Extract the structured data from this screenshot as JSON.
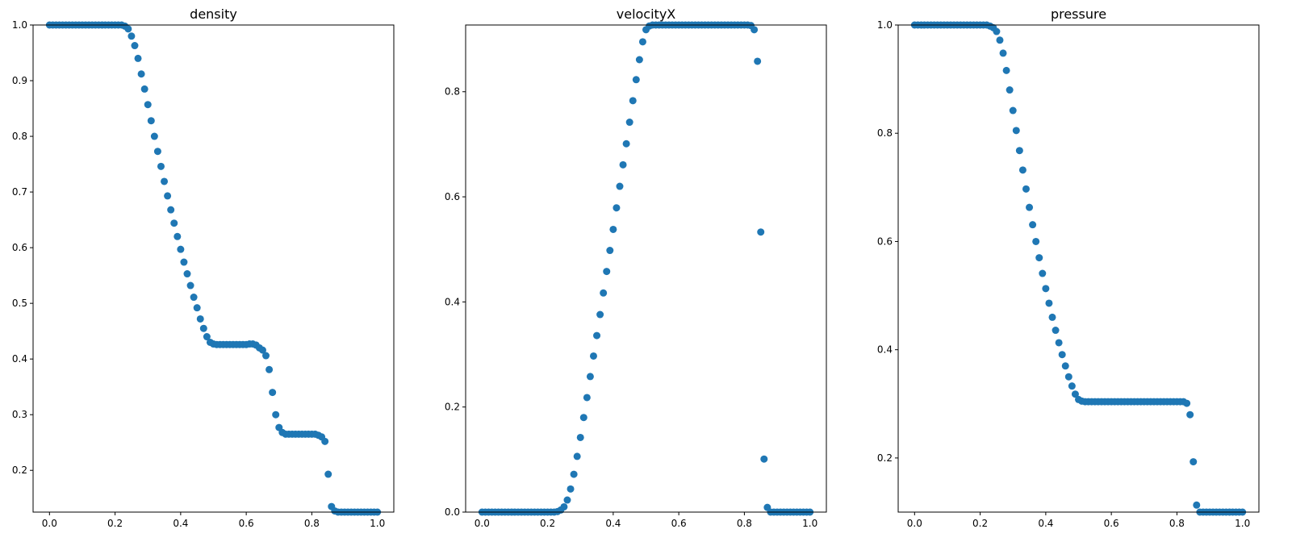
{
  "chart_data": [
    {
      "type": "scatter",
      "title": "density",
      "color": "#1f77b4",
      "x": [
        0,
        0.01,
        0.02,
        0.03,
        0.04,
        0.05,
        0.06,
        0.07,
        0.08,
        0.09,
        0.1,
        0.11,
        0.12,
        0.13,
        0.14,
        0.15,
        0.16,
        0.17,
        0.18,
        0.19,
        0.2,
        0.21,
        0.22,
        0.23,
        0.24,
        0.25,
        0.26,
        0.27,
        0.28,
        0.29,
        0.3,
        0.31,
        0.32,
        0.33,
        0.34,
        0.35,
        0.36,
        0.37,
        0.38,
        0.39,
        0.4,
        0.41,
        0.42,
        0.43,
        0.44,
        0.45,
        0.46,
        0.47,
        0.48,
        0.49,
        0.5,
        0.51,
        0.52,
        0.53,
        0.54,
        0.55,
        0.56,
        0.57,
        0.58,
        0.59,
        0.6,
        0.61,
        0.62,
        0.63,
        0.64,
        0.65,
        0.66,
        0.67,
        0.68,
        0.69,
        0.7,
        0.71,
        0.72,
        0.73,
        0.74,
        0.75,
        0.76,
        0.77,
        0.78,
        0.79,
        0.8,
        0.81,
        0.82,
        0.83,
        0.84,
        0.85,
        0.86,
        0.87,
        0.88,
        0.89,
        0.9,
        0.91,
        0.92,
        0.93,
        0.94,
        0.95,
        0.96,
        0.97,
        0.98,
        0.99,
        1
      ],
      "values": [
        1,
        1,
        1,
        1,
        1,
        1,
        1,
        1,
        1,
        1,
        1,
        1,
        1,
        1,
        1,
        1,
        1,
        1,
        1,
        1,
        1,
        1,
        1,
        0.998,
        0.993,
        0.98,
        0.963,
        0.94,
        0.912,
        0.885,
        0.857,
        0.828,
        0.8,
        0.773,
        0.746,
        0.719,
        0.693,
        0.668,
        0.644,
        0.62,
        0.597,
        0.574,
        0.553,
        0.532,
        0.511,
        0.492,
        0.472,
        0.455,
        0.44,
        0.43,
        0.427,
        0.426,
        0.426,
        0.426,
        0.426,
        0.426,
        0.426,
        0.426,
        0.426,
        0.426,
        0.426,
        0.427,
        0.427,
        0.425,
        0.42,
        0.416,
        0.406,
        0.381,
        0.34,
        0.3,
        0.277,
        0.268,
        0.265,
        0.265,
        0.265,
        0.265,
        0.265,
        0.265,
        0.265,
        0.265,
        0.265,
        0.265,
        0.263,
        0.26,
        0.252,
        0.193,
        0.135,
        0.127,
        0.125,
        0.125,
        0.125,
        0.125,
        0.125,
        0.125,
        0.125,
        0.125,
        0.125,
        0.125,
        0.125,
        0.125,
        0.125
      ],
      "xlim": [
        -0.05,
        1.05
      ],
      "xticks": [
        {
          "value": 0,
          "label": "0.0"
        },
        0.2,
        0.4,
        0.6,
        0.8,
        {
          "value": 1,
          "label": "1.0"
        }
      ],
      "ylim": [
        0.125,
        1
      ],
      "yticks": [
        0.2,
        0.3,
        0.4,
        0.5,
        0.6,
        0.7,
        0.8,
        0.9,
        {
          "value": 1,
          "label": "1.0"
        }
      ],
      "grid": false
    },
    {
      "type": "scatter",
      "title": "velocityX",
      "color": "#1f77b4",
      "x": [
        0,
        0.01,
        0.02,
        0.03,
        0.04,
        0.05,
        0.06,
        0.07,
        0.08,
        0.09,
        0.1,
        0.11,
        0.12,
        0.13,
        0.14,
        0.15,
        0.16,
        0.17,
        0.18,
        0.19,
        0.2,
        0.21,
        0.22,
        0.23,
        0.24,
        0.25,
        0.26,
        0.27,
        0.28,
        0.29,
        0.3,
        0.31,
        0.32,
        0.33,
        0.34,
        0.35,
        0.36,
        0.37,
        0.38,
        0.39,
        0.4,
        0.41,
        0.42,
        0.43,
        0.44,
        0.45,
        0.46,
        0.47,
        0.48,
        0.49,
        0.5,
        0.51,
        0.52,
        0.53,
        0.54,
        0.55,
        0.56,
        0.57,
        0.58,
        0.59,
        0.6,
        0.61,
        0.62,
        0.63,
        0.64,
        0.65,
        0.66,
        0.67,
        0.68,
        0.69,
        0.7,
        0.71,
        0.72,
        0.73,
        0.74,
        0.75,
        0.76,
        0.77,
        0.78,
        0.79,
        0.8,
        0.81,
        0.82,
        0.83,
        0.84,
        0.85,
        0.86,
        0.87,
        0.88,
        0.89,
        0.9,
        0.91,
        0.92,
        0.93,
        0.94,
        0.95,
        0.96,
        0.97,
        0.98,
        0.99,
        1
      ],
      "values": [
        0,
        0,
        0,
        0,
        0,
        0,
        0,
        0,
        0,
        0,
        0,
        0,
        0,
        0,
        0,
        0,
        0,
        0,
        0,
        0,
        0,
        0,
        0,
        0.001,
        0.004,
        0.01,
        0.023,
        0.044,
        0.072,
        0.106,
        0.142,
        0.18,
        0.218,
        0.258,
        0.297,
        0.336,
        0.376,
        0.417,
        0.458,
        0.498,
        0.538,
        0.579,
        0.62,
        0.661,
        0.701,
        0.742,
        0.783,
        0.823,
        0.861,
        0.895,
        0.918,
        0.925,
        0.927,
        0.927,
        0.927,
        0.927,
        0.927,
        0.927,
        0.927,
        0.927,
        0.927,
        0.927,
        0.927,
        0.927,
        0.927,
        0.927,
        0.927,
        0.927,
        0.927,
        0.927,
        0.927,
        0.927,
        0.927,
        0.927,
        0.927,
        0.927,
        0.927,
        0.927,
        0.927,
        0.927,
        0.927,
        0.927,
        0.926,
        0.918,
        0.858,
        0.533,
        0.101,
        0.009,
        0,
        0,
        0,
        0,
        0,
        0,
        0,
        0,
        0,
        0,
        0,
        0,
        0
      ],
      "xlim": [
        -0.05,
        1.05
      ],
      "xticks": [
        {
          "value": 0,
          "label": "0.0"
        },
        0.2,
        0.4,
        0.6,
        0.8,
        {
          "value": 1,
          "label": "1.0"
        }
      ],
      "ylim": [
        0,
        0.927
      ],
      "yticks": [
        {
          "value": 0,
          "label": "0.0"
        },
        0.2,
        0.4,
        0.6,
        0.8
      ],
      "grid": false
    },
    {
      "type": "scatter",
      "title": "pressure",
      "color": "#1f77b4",
      "x": [
        0,
        0.01,
        0.02,
        0.03,
        0.04,
        0.05,
        0.06,
        0.07,
        0.08,
        0.09,
        0.1,
        0.11,
        0.12,
        0.13,
        0.14,
        0.15,
        0.16,
        0.17,
        0.18,
        0.19,
        0.2,
        0.21,
        0.22,
        0.23,
        0.24,
        0.25,
        0.26,
        0.27,
        0.28,
        0.29,
        0.3,
        0.31,
        0.32,
        0.33,
        0.34,
        0.35,
        0.36,
        0.37,
        0.38,
        0.39,
        0.4,
        0.41,
        0.42,
        0.43,
        0.44,
        0.45,
        0.46,
        0.47,
        0.48,
        0.49,
        0.5,
        0.51,
        0.52,
        0.53,
        0.54,
        0.55,
        0.56,
        0.57,
        0.58,
        0.59,
        0.6,
        0.61,
        0.62,
        0.63,
        0.64,
        0.65,
        0.66,
        0.67,
        0.68,
        0.69,
        0.7,
        0.71,
        0.72,
        0.73,
        0.74,
        0.75,
        0.76,
        0.77,
        0.78,
        0.79,
        0.8,
        0.81,
        0.82,
        0.83,
        0.84,
        0.85,
        0.86,
        0.87,
        0.88,
        0.89,
        0.9,
        0.91,
        0.92,
        0.93,
        0.94,
        0.95,
        0.96,
        0.97,
        0.98,
        0.99,
        1
      ],
      "values": [
        1,
        1,
        1,
        1,
        1,
        1,
        1,
        1,
        1,
        1,
        1,
        1,
        1,
        1,
        1,
        1,
        1,
        1,
        1,
        1,
        1,
        1,
        1,
        0.998,
        0.995,
        0.988,
        0.972,
        0.948,
        0.916,
        0.88,
        0.842,
        0.805,
        0.768,
        0.732,
        0.697,
        0.663,
        0.631,
        0.6,
        0.57,
        0.541,
        0.513,
        0.486,
        0.46,
        0.436,
        0.413,
        0.391,
        0.37,
        0.35,
        0.333,
        0.318,
        0.308,
        0.305,
        0.304,
        0.304,
        0.304,
        0.304,
        0.304,
        0.304,
        0.304,
        0.304,
        0.304,
        0.304,
        0.304,
        0.304,
        0.304,
        0.304,
        0.304,
        0.304,
        0.304,
        0.304,
        0.304,
        0.304,
        0.304,
        0.304,
        0.304,
        0.304,
        0.304,
        0.304,
        0.304,
        0.304,
        0.304,
        0.304,
        0.304,
        0.301,
        0.28,
        0.193,
        0.113,
        0.1,
        0.1,
        0.1,
        0.1,
        0.1,
        0.1,
        0.1,
        0.1,
        0.1,
        0.1,
        0.1,
        0.1,
        0.1,
        0.1
      ],
      "xlim": [
        -0.05,
        1.05
      ],
      "xticks": [
        {
          "value": 0,
          "label": "0.0"
        },
        0.2,
        0.4,
        0.6,
        0.8,
        {
          "value": 1,
          "label": "1.0"
        }
      ],
      "ylim": [
        0.1,
        1
      ],
      "yticks": [
        0.2,
        0.4,
        0.6,
        0.8,
        {
          "value": 1,
          "label": "1.0"
        }
      ],
      "grid": false
    }
  ]
}
